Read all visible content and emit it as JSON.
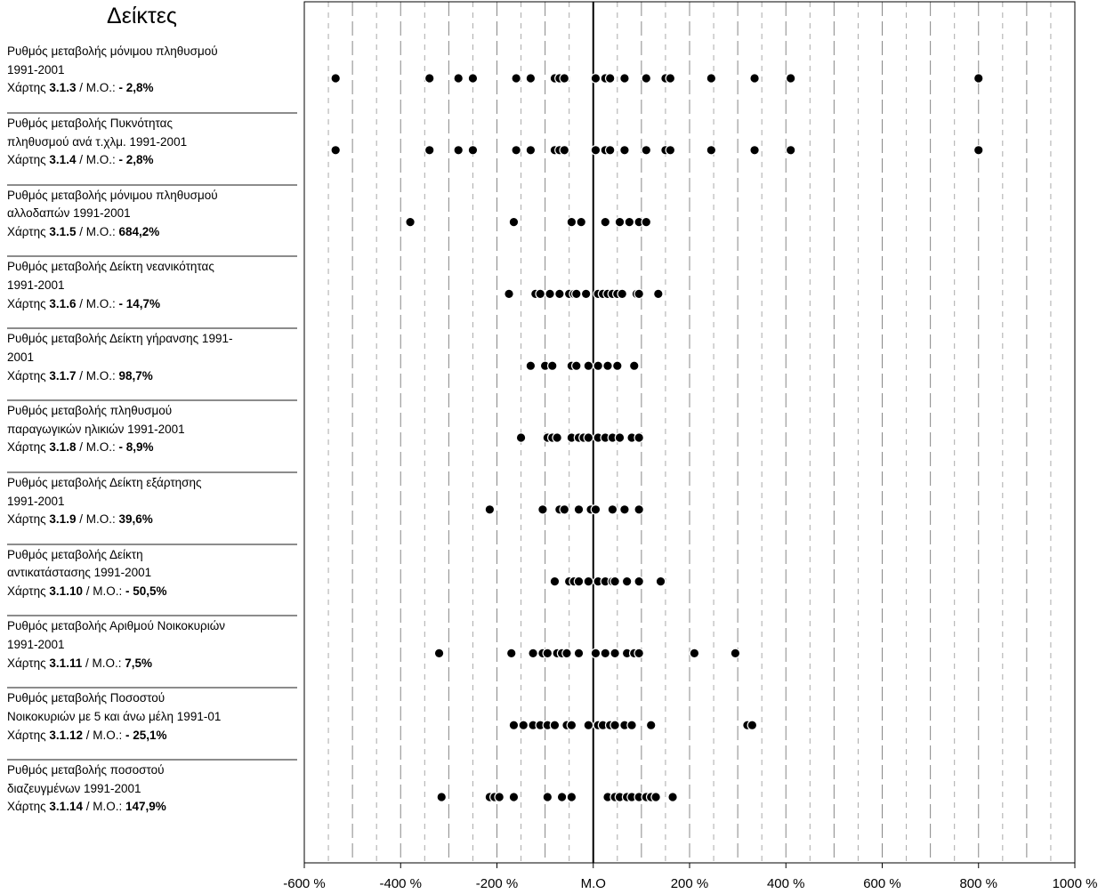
{
  "left_panel": {
    "title": "Δείκτες"
  },
  "indicators": [
    {
      "name": "Ρυθμός μεταβολής μόνιμου πληθυσμού\n1991-2001",
      "map_label": "Χάρτης",
      "map_ref": "3.1.3",
      "avg_label": "Μ.Ο.:",
      "avg_value": "- 2,8%"
    },
    {
      "name": "Ρυθμός μεταβολής Πυκνότητας\nπληθυσμού ανά τ.χλμ. 1991-2001",
      "map_label": "Χάρτης",
      "map_ref": "3.1.4",
      "avg_label": "Μ.Ο.:",
      "avg_value": "- 2,8%"
    },
    {
      "name": "Ρυθμός μεταβολής μόνιμου πληθυσμού\nαλλοδαπών 1991-2001",
      "map_label": "Χάρτης",
      "map_ref": "3.1.5",
      "avg_label": "Μ.Ο.:",
      "avg_value": "684,2%"
    },
    {
      "name": "Ρυθμός μεταβολής Δείκτη νεανικότητας\n1991-2001",
      "map_label": "Χάρτης",
      "map_ref": "3.1.6",
      "avg_label": "Μ.Ο.:",
      "avg_value": "- 14,7%"
    },
    {
      "name": "Ρυθμός μεταβολής Δείκτη γήρανσης 1991-\n2001",
      "map_label": "Χάρτης",
      "map_ref": "3.1.7",
      "avg_label": "Μ.Ο.:",
      "avg_value": "98,7%"
    },
    {
      "name": "Ρυθμός μεταβολής  πληθυσμού\nπαραγωγικών ηλικιών 1991-2001",
      "map_label": "Χάρτης",
      "map_ref": "3.1.8",
      "avg_label": "Μ.Ο.:",
      "avg_value": "- 8,9%"
    },
    {
      "name": "Ρυθμός μεταβολής Δείκτη εξάρτησης\n1991-2001",
      "map_label": "Χάρτης",
      "map_ref": "3.1.9",
      "avg_label": "Μ.Ο.:",
      "avg_value": "39,6%"
    },
    {
      "name": "Ρυθμός μεταβολής Δείκτη\nαντικατάστασης 1991-2001",
      "map_label": "Χάρτης",
      "map_ref": "3.1.10",
      "avg_label": "Μ.Ο.:",
      "avg_value": "- 50,5%"
    },
    {
      "name": "Ρυθμός μεταβολής Αριθμού Νοικοκυριών\n1991-2001",
      "map_label": "Χάρτης",
      "map_ref": "3.1.11",
      "avg_label": "Μ.Ο.:",
      "avg_value": "7,5%"
    },
    {
      "name": "Ρυθμός μεταβολής Ποσοστού\nΝοικοκυριών με 5 και άνω μέλη 1991-01",
      "map_label": "Χάρτης",
      "map_ref": "3.1.12",
      "avg_label": "Μ.Ο.:",
      "avg_value": "- 25,1%"
    },
    {
      "name": "Ρυθμός μεταβολής ποσοστού\nδιαζευγμένων 1991-2001",
      "map_label": "Χάρτης",
      "map_ref": "3.1.14",
      "avg_label": "Μ.Ο.:",
      "avg_value": "147,9%"
    }
  ],
  "chart_data": {
    "type": "scatter",
    "orientation": "horizontal strip plot",
    "xlim": [
      -600,
      1000
    ],
    "x_ticks": [
      -600,
      -400,
      -200,
      0,
      200,
      400,
      600,
      800,
      1000
    ],
    "x_tick_labels": [
      "-600 %",
      "-400 %",
      "-200 %",
      "M.O",
      "200 %",
      "400 %",
      "600 %",
      "800 %",
      "1000 %"
    ],
    "reference_line": {
      "x": 0
    },
    "grid": "vertical dashed lines every 50 %",
    "marker_color": "#000000",
    "rows": [
      {
        "indicator": "3.1.3",
        "x": [
          -535,
          -340,
          -280,
          -250,
          -160,
          -130,
          -80,
          -70,
          -60,
          5,
          25,
          35,
          65,
          110,
          150,
          160,
          245,
          335,
          410,
          800
        ]
      },
      {
        "indicator": "3.1.4",
        "x": [
          -535,
          -340,
          -280,
          -250,
          -160,
          -130,
          -80,
          -70,
          -60,
          5,
          25,
          35,
          65,
          110,
          150,
          160,
          245,
          335,
          410,
          800
        ]
      },
      {
        "indicator": "3.1.5",
        "x": [
          -380,
          -165,
          -45,
          -25,
          25,
          55,
          75,
          95,
          110
        ]
      },
      {
        "indicator": "3.1.6",
        "x": [
          -175,
          -120,
          -110,
          -90,
          -70,
          -50,
          -40,
          -35,
          -15,
          10,
          20,
          30,
          40,
          50,
          60,
          90,
          95,
          135
        ]
      },
      {
        "indicator": "3.1.7",
        "x": [
          -130,
          -100,
          -85,
          -45,
          -35,
          -10,
          10,
          30,
          50,
          85
        ]
      },
      {
        "indicator": "3.1.8",
        "x": [
          -150,
          -95,
          -85,
          -75,
          -45,
          -30,
          -20,
          -10,
          10,
          25,
          40,
          55,
          80,
          95
        ]
      },
      {
        "indicator": "3.1.9",
        "x": [
          -215,
          -105,
          -70,
          -60,
          -30,
          -5,
          5,
          40,
          65,
          95
        ]
      },
      {
        "indicator": "3.1.10",
        "x": [
          -80,
          -50,
          -40,
          -30,
          -10,
          10,
          25,
          40,
          45,
          70,
          95,
          140
        ]
      },
      {
        "indicator": "3.1.11",
        "x": [
          -320,
          -170,
          -125,
          -105,
          -95,
          -75,
          -65,
          -55,
          -30,
          5,
          25,
          45,
          70,
          85,
          95,
          210,
          295
        ]
      },
      {
        "indicator": "3.1.12",
        "x": [
          -165,
          -145,
          -125,
          -110,
          -95,
          -80,
          -55,
          -45,
          -10,
          10,
          20,
          35,
          45,
          65,
          80,
          120,
          320,
          330
        ]
      },
      {
        "indicator": "3.1.14",
        "x": [
          -315,
          -215,
          -205,
          -195,
          -165,
          -95,
          -65,
          -45,
          30,
          45,
          55,
          70,
          80,
          95,
          110,
          120,
          130,
          165
        ]
      }
    ]
  }
}
